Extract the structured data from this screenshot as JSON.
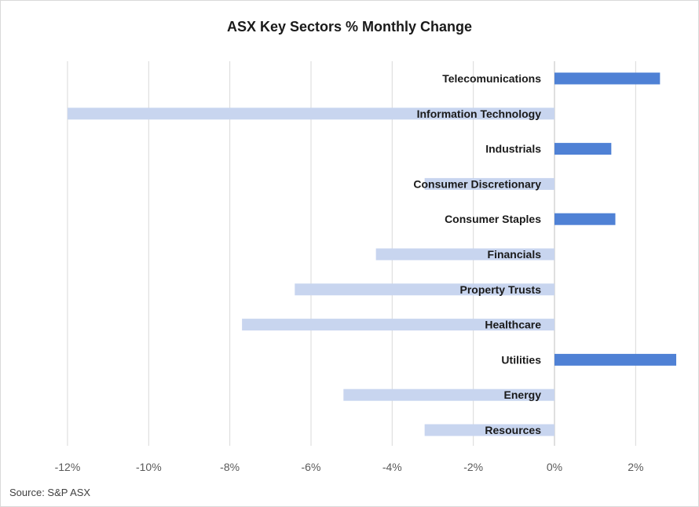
{
  "chart_data": {
    "type": "bar",
    "orientation": "horizontal",
    "title": "ASX Key Sectors % Monthly Change",
    "source": "Source: S&P ASX",
    "xlabel": "",
    "ylabel": "",
    "xlim": [
      -12,
      3
    ],
    "x_ticks": [
      "-12%",
      "-10%",
      "-8%",
      "-6%",
      "-4%",
      "-2%",
      "0%",
      "2%"
    ],
    "x_tick_values": [
      -12,
      -10,
      -8,
      -6,
      -4,
      -2,
      0,
      2
    ],
    "grid": "vertical",
    "legend": "none",
    "colors": {
      "positive": "#4f81d5",
      "negative": "#c8d5ef",
      "grid": "#d9d9d9",
      "axis": "#bfbfbf"
    },
    "categories": [
      "Telecomunications",
      "Information Technology",
      "Industrials",
      "Consumer Discretionary",
      "Consumer Staples",
      "Financials",
      "Property Trusts",
      "Healthcare",
      "Utilities",
      "Energy",
      "Resources"
    ],
    "values": [
      2.6,
      -12.0,
      1.4,
      -3.2,
      1.5,
      -4.4,
      -6.4,
      -7.7,
      3.0,
      -5.2,
      -3.2
    ]
  }
}
